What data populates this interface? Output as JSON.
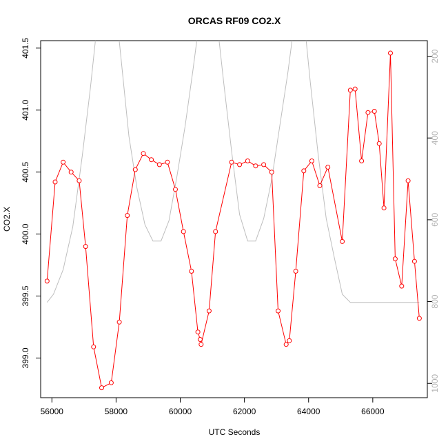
{
  "chart_data": {
    "type": "line",
    "title": "ORCAS RF09 CO2.X",
    "xlabel": "UTC Seconds",
    "ylabel": "CO2.X",
    "x_range": [
      55650,
      67700
    ],
    "x_ticks": [
      56000,
      58000,
      60000,
      62000,
      64000,
      66000
    ],
    "y_range": [
      398.68,
      401.56
    ],
    "y_ticks": [
      {
        "value": 399.0,
        "label": "399.0"
      },
      {
        "value": 399.5,
        "label": "399.5"
      },
      {
        "value": 400.0,
        "label": "400.0"
      },
      {
        "value": 400.5,
        "label": "400.5"
      },
      {
        "value": 401.0,
        "label": "401.0"
      },
      {
        "value": 401.5,
        "label": "401.5"
      }
    ],
    "y2_range": [
      1035,
      162
    ],
    "y2_ticks": [
      {
        "value": 200,
        "label": "200"
      },
      {
        "value": 400,
        "label": "400"
      },
      {
        "value": 600,
        "label": "600"
      },
      {
        "value": 800,
        "label": "800"
      },
      {
        "value": 1000,
        "label": "1000"
      }
    ],
    "grid": false,
    "series": [
      {
        "color": "#ff0000",
        "marker": "open-circle",
        "axis": "left",
        "x": [
          55850,
          56100,
          56350,
          56600,
          56850,
          57050,
          57300,
          57550,
          57850,
          58100,
          58350,
          58600,
          58850,
          59100,
          59350,
          59600,
          59850,
          60100,
          60350,
          60550,
          60620,
          60650,
          60900,
          61100,
          61600,
          61850,
          62100,
          62350,
          62600,
          62850,
          63050,
          63300,
          63400,
          63600,
          63850,
          64100,
          64350,
          64600,
          65050,
          65300,
          65450,
          65650,
          65850,
          66050,
          66200,
          66350,
          66550,
          66700,
          66900,
          67100,
          67300,
          67450
        ],
        "y": [
          399.62,
          400.42,
          400.58,
          400.5,
          400.43,
          399.9,
          399.09,
          398.76,
          398.8,
          399.29,
          400.15,
          400.52,
          400.65,
          400.6,
          400.56,
          400.58,
          400.36,
          400.02,
          399.7,
          399.21,
          399.15,
          399.11,
          399.38,
          400.02,
          400.58,
          400.56,
          400.59,
          400.55,
          400.56,
          400.5,
          399.38,
          399.11,
          399.14,
          399.7,
          400.51,
          400.59,
          400.39,
          400.54,
          399.94,
          401.16,
          401.17,
          400.59,
          400.98,
          400.99,
          400.73,
          400.21,
          401.46,
          399.8,
          399.58,
          400.43,
          399.78,
          399.32
        ]
      },
      {
        "color": "#bebebe",
        "marker": "none",
        "axis": "right",
        "x": [
          55850,
          56050,
          56350,
          56650,
          56950,
          57200,
          57450,
          57700,
          57900,
          58150,
          58400,
          58650,
          58900,
          59150,
          59400,
          59650,
          59900,
          60150,
          60400,
          60650,
          60900,
          61100,
          61350,
          61600,
          61850,
          62100,
          62350,
          62600,
          62850,
          63100,
          63350,
          63600,
          63800,
          64050,
          64300,
          64550,
          64800,
          65050,
          65300,
          65600,
          66000,
          66500,
          67000,
          67450
        ],
        "y": [
          802,
          782,
          722,
          617,
          442,
          277,
          92,
          -28,
          12,
          202,
          395,
          522,
          612,
          652,
          652,
          602,
          492,
          372,
          232,
          82,
          -18,
          82,
          262,
          432,
          587,
          652,
          652,
          597,
          502,
          372,
          242,
          92,
          62,
          262,
          442,
          597,
          692,
          782,
          802,
          802,
          802,
          802,
          802,
          802
        ]
      }
    ]
  }
}
